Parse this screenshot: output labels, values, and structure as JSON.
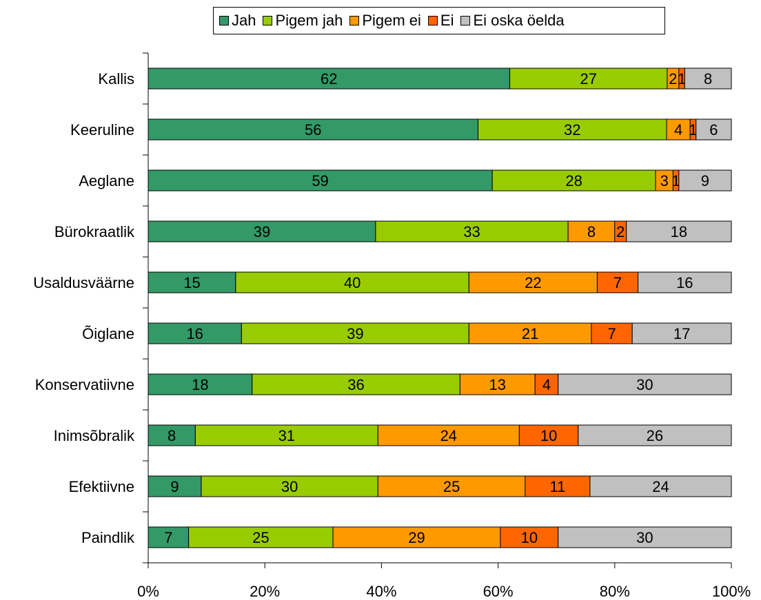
{
  "chart_data": {
    "type": "bar",
    "orientation": "horizontal",
    "stacking": "percent",
    "categories": [
      "Kallis",
      "Keeruline",
      "Aeglane",
      "Bürokraatlik",
      "Usaldusväärne",
      "Õiglane",
      "Konservatiivne",
      "Inimsõbralik",
      "Efektiivne",
      "Paindlik"
    ],
    "series": [
      {
        "name": "Jah",
        "color": "#339966",
        "values": [
          62,
          56,
          59,
          39,
          15,
          16,
          18,
          8,
          9,
          7
        ]
      },
      {
        "name": "Pigem jah",
        "color": "#99cc00",
        "values": [
          27,
          32,
          28,
          33,
          40,
          39,
          36,
          31,
          30,
          25
        ]
      },
      {
        "name": "Pigem ei",
        "color": "#ff9900",
        "values": [
          2,
          4,
          3,
          8,
          22,
          21,
          13,
          24,
          25,
          29
        ]
      },
      {
        "name": "Ei",
        "color": "#ff6600",
        "values": [
          1,
          1,
          1,
          2,
          7,
          7,
          4,
          10,
          11,
          10
        ]
      },
      {
        "name": "Ei oska öelda",
        "color": "#c0c0c0",
        "values": [
          8,
          6,
          9,
          18,
          16,
          17,
          30,
          26,
          24,
          30
        ]
      }
    ],
    "xlim": [
      0,
      100
    ],
    "x_ticks": [
      "0%",
      "20%",
      "40%",
      "60%",
      "80%",
      "100%"
    ],
    "grid": false,
    "legend_position": "top",
    "title": "",
    "xlabel": "",
    "ylabel": ""
  }
}
